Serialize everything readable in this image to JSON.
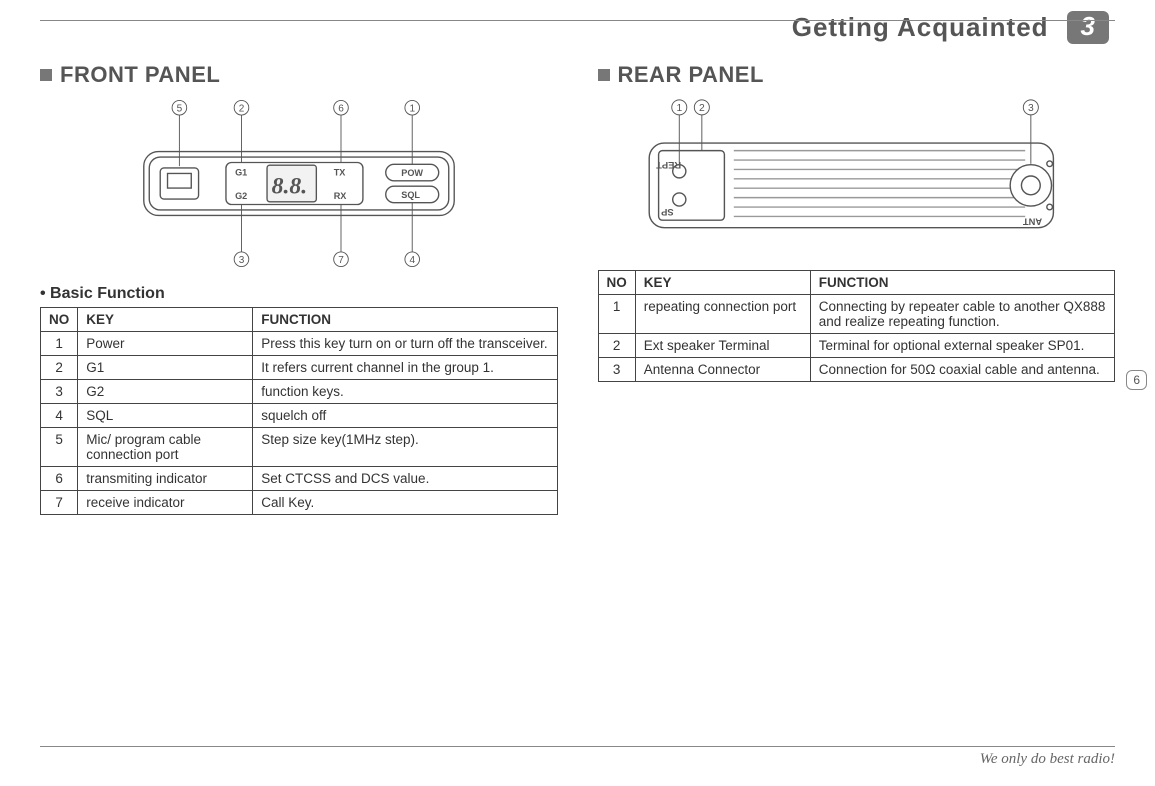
{
  "header": {
    "title": "Getting Acquainted",
    "page_number": "3"
  },
  "side_tab": "6",
  "front_panel": {
    "title": "FRONT PANEL",
    "subhead": "• Basic Function",
    "callouts": [
      "5",
      "2",
      "6",
      "1",
      "3",
      "7",
      "4"
    ],
    "device_labels": {
      "g1": "G1",
      "g2": "G2",
      "tx": "TX",
      "rx": "RX",
      "pow": "POW",
      "sql": "SQL",
      "disp": "8.8."
    },
    "table": {
      "columns": [
        "NO",
        "KEY",
        "FUNCTION"
      ],
      "rows": [
        {
          "no": "1",
          "key": "Power",
          "fn": "Press this key turn on or turn off the transceiver."
        },
        {
          "no": "2",
          "key": "G1",
          "fn": "It refers current channel in the group 1."
        },
        {
          "no": "3",
          "key": "G2",
          "fn": "function keys."
        },
        {
          "no": "4",
          "key": "SQL",
          "fn": " squelch off"
        },
        {
          "no": "5",
          "key": "Mic/ program cable connection port",
          "fn": "Step size key(1MHz step)."
        },
        {
          "no": "6",
          "key": "transmiting indicator",
          "fn": "Set CTCSS and DCS value."
        },
        {
          "no": "7",
          "key": "receive indicator",
          "fn": "Call Key."
        }
      ]
    }
  },
  "rear_panel": {
    "title": "REAR PANEL",
    "callouts": [
      "1",
      "2",
      "3"
    ],
    "device_labels": {
      "rept": "REPT",
      "sp": "SP",
      "ant": "ANT"
    },
    "table": {
      "columns": [
        "NO",
        "KEY",
        "FUNCTION"
      ],
      "rows": [
        {
          "no": "1",
          "key": "repeating connection port",
          "fn": "Connecting by repeater cable to another QX888 and realize repeating function."
        },
        {
          "no": "2",
          "key": "Ext speaker Terminal",
          "fn": "Terminal for optional external speaker SP01."
        },
        {
          "no": "3",
          "key": "Antenna Connector",
          "fn": "Connection for 50Ω coaxial cable and antenna."
        }
      ]
    }
  },
  "footer": {
    "slogan": "We only do best radio!"
  },
  "colors": {
    "stroke": "#555555",
    "light": "#bfbfbf",
    "text": "#3a3a3a"
  }
}
